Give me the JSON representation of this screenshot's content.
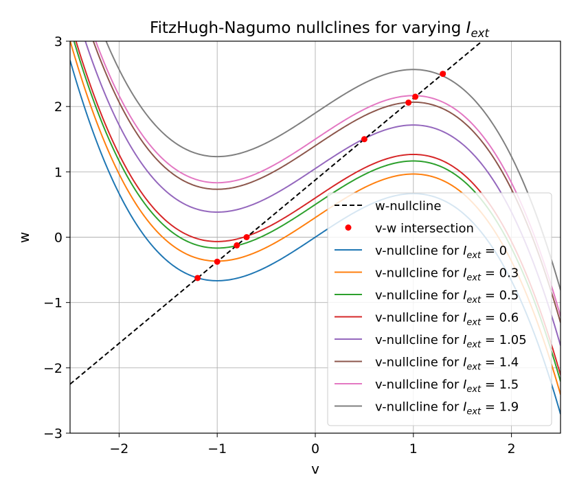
{
  "chart_data": {
    "type": "line",
    "title": {
      "main": "FitzHugh-Nagumo nullclines for varying ",
      "symbol": "I",
      "subscript": "ext"
    },
    "xlabel": "v",
    "ylabel": "w",
    "xlim": [
      -2.5,
      2.5
    ],
    "ylim": [
      -3,
      3
    ],
    "xticks": [
      -2,
      -1,
      0,
      1,
      2
    ],
    "yticks": [
      -3,
      -2,
      -1,
      0,
      1,
      2,
      3
    ],
    "xtick_labels": [
      "−2",
      "−1",
      "0",
      "1",
      "2"
    ],
    "ytick_labels": [
      "−3",
      "−2",
      "−1",
      "0",
      "1",
      "2",
      "3"
    ],
    "grid": true,
    "legend_position": "lower-right",
    "w_nullcline": {
      "name": "w-nullcline",
      "slope": 1.25,
      "intercept": 0.875,
      "color": "#000000",
      "style": "dashed"
    },
    "intersections": {
      "name": "v-w intersection",
      "color": "#ff0000",
      "points": [
        {
          "v": -1.2,
          "w": -0.625
        },
        {
          "v": -1.0,
          "w": -0.375
        },
        {
          "v": -0.8,
          "w": -0.125
        },
        {
          "v": -0.7,
          "w": 0.0
        },
        {
          "v": 0.5,
          "w": 1.5
        },
        {
          "v": 0.95,
          "w": 2.06
        },
        {
          "v": 1.02,
          "w": 2.15
        },
        {
          "v": 1.3,
          "w": 2.5
        }
      ]
    },
    "series": [
      {
        "name_prefix": "v-nullcline for ",
        "I_ext": 0,
        "value_text": "0",
        "color": "#1f77b4"
      },
      {
        "name_prefix": "v-nullcline for ",
        "I_ext": 0.3,
        "value_text": "0.3",
        "color": "#ff7f0e"
      },
      {
        "name_prefix": "v-nullcline for ",
        "I_ext": 0.5,
        "value_text": "0.5",
        "color": "#2ca02c"
      },
      {
        "name_prefix": "v-nullcline for ",
        "I_ext": 0.6,
        "value_text": "0.6",
        "color": "#d62728"
      },
      {
        "name_prefix": "v-nullcline for ",
        "I_ext": 1.05,
        "value_text": "1.05",
        "color": "#9467bd"
      },
      {
        "name_prefix": "v-nullcline for ",
        "I_ext": 1.4,
        "value_text": "1.4",
        "color": "#8c564b"
      },
      {
        "name_prefix": "v-nullcline for ",
        "I_ext": 1.5,
        "value_text": "1.5",
        "color": "#e377c2"
      },
      {
        "name_prefix": "v-nullcline for ",
        "I_ext": 1.9,
        "value_text": "1.9",
        "color": "#7f7f7f"
      }
    ],
    "legend_symbol": {
      "symbol": "I",
      "subscript": "ext",
      "relation": " = "
    }
  }
}
